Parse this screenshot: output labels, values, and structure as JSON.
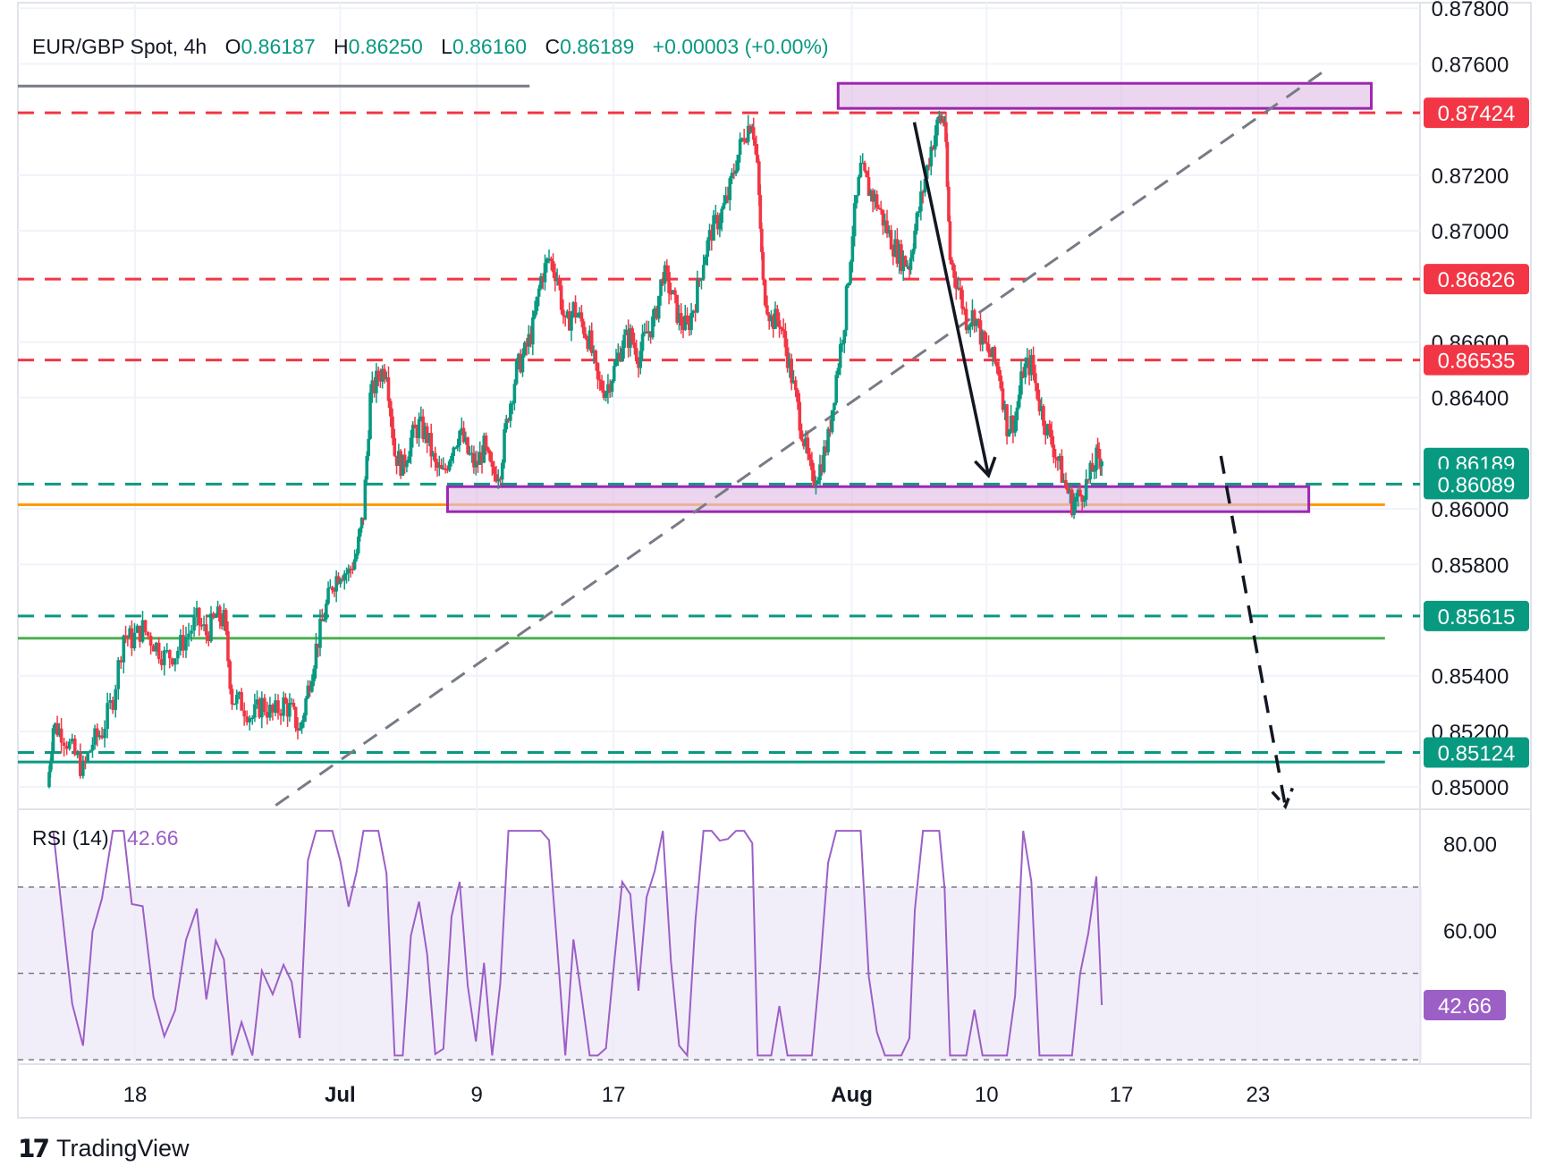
{
  "header": {
    "symbol": "EUR/GBP Spot, 4h",
    "o_label": "O",
    "o_value": "0.86187",
    "h_label": "H",
    "h_value": "0.86250",
    "l_label": "L",
    "l_value": "0.86160",
    "c_label": "C",
    "c_value": "0.86189",
    "change": "+0.00003 (+0.00%)"
  },
  "rsi_header": {
    "label": "RSI (14)",
    "value": "42.66"
  },
  "branding": {
    "name": "TradingView"
  },
  "colors": {
    "up": "#089981",
    "down": "#f23645",
    "resistance": "#f23645",
    "support": "#089981",
    "zone_fill": "#e1bee7",
    "zone_stroke": "#9c27b0",
    "orange_line": "#ff9800",
    "green_line": "#4caf50",
    "teal_line": "#089981",
    "trend_dash": "#787b86",
    "rsi_line": "#9c5fc6",
    "rsi_fill": "#ede7f6"
  },
  "chart_data": [
    {
      "type": "candlestick",
      "title": "EUR/GBP Spot, 4h",
      "y_axis_ticks": [
        "0.87800",
        "0.87600",
        "0.87200",
        "0.87000",
        "0.86600",
        "0.86400",
        "0.86000",
        "0.85800",
        "0.85400",
        "0.85200",
        "0.85000"
      ],
      "x_axis_ticks": [
        "18",
        "Jul",
        "9",
        "17",
        "Aug",
        "10",
        "17",
        "23"
      ],
      "ylim": [
        0.8492,
        0.8782
      ],
      "last_price": 0.86189,
      "price_labels": [
        {
          "value": "0.87424",
          "kind": "resistance"
        },
        {
          "value": "0.86826",
          "kind": "resistance"
        },
        {
          "value": "0.86535",
          "kind": "resistance"
        },
        {
          "value": "0.86189",
          "kind": "current"
        },
        {
          "value": "0.86089",
          "kind": "support"
        },
        {
          "value": "0.85615",
          "kind": "support"
        },
        {
          "value": "0.85124",
          "kind": "support"
        }
      ],
      "horizontal_levels": [
        {
          "price": 0.8752,
          "style": "solid",
          "color": "#787b86",
          "x_start_day": 0,
          "x_end_day": 26.2
        },
        {
          "price": 0.87424,
          "style": "dashed",
          "color": "#f23645",
          "x_start_day": 0,
          "x_end_day": 76
        },
        {
          "price": 0.86826,
          "style": "dashed",
          "color": "#f23645",
          "x_start_day": 0,
          "x_end_day": 76
        },
        {
          "price": 0.86535,
          "style": "dashed",
          "color": "#f23645",
          "x_start_day": 0,
          "x_end_day": 76
        },
        {
          "price": 0.86089,
          "style": "dashed",
          "color": "#089981",
          "x_start_day": 0,
          "x_end_day": 76
        },
        {
          "price": 0.86015,
          "style": "solid",
          "color": "#ff9800",
          "x_start_day": 0,
          "x_end_day": 70
        },
        {
          "price": 0.85615,
          "style": "dashed",
          "color": "#089981",
          "x_start_day": 0,
          "x_end_day": 76
        },
        {
          "price": 0.85535,
          "style": "solid",
          "color": "#4caf50",
          "x_start_day": 0,
          "x_end_day": 70
        },
        {
          "price": 0.85124,
          "style": "dashed",
          "color": "#089981",
          "x_start_day": 0,
          "x_end_day": 76
        },
        {
          "price": 0.8509,
          "style": "solid",
          "color": "#089981",
          "x_start_day": 0,
          "x_end_day": 70
        }
      ],
      "zones": [
        {
          "name": "upper-zone",
          "x_start_day": 42.0,
          "x_end_day": 69.3,
          "price_top": 0.8753,
          "price_bottom": 0.8744
        },
        {
          "name": "lower-zone",
          "x_start_day": 22.0,
          "x_end_day": 66.1,
          "price_top": 0.8608,
          "price_bottom": 0.8599
        }
      ],
      "trendline": {
        "style": "dashed",
        "points": [
          [
            13.2,
            0.84934
          ],
          [
            67.0,
            0.8758
          ]
        ]
      },
      "arrows": [
        {
          "style": "solid",
          "from": [
            45.9,
            0.8739
          ],
          "to": [
            49.7,
            0.8612
          ]
        },
        {
          "style": "dashed",
          "from": [
            61.6,
            0.8619
          ],
          "to": [
            64.9,
            0.8493
          ]
        }
      ],
      "series": [
        {
          "name": "EUR/GBP",
          "ohlc": []
        }
      ]
    },
    {
      "type": "line",
      "title": "RSI (14)",
      "y_axis_ticks": [
        "80.00",
        "60.00",
        "42.66"
      ],
      "ylim": [
        29,
        88
      ],
      "bands": [
        30,
        50,
        70
      ],
      "last_value": 42.66,
      "series": [
        {
          "name": "RSI (14)",
          "values": []
        }
      ]
    }
  ]
}
